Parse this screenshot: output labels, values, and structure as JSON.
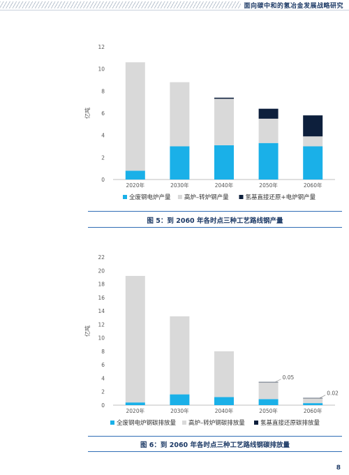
{
  "header": {
    "title": "面向碳中和的氢冶金发展战略研究"
  },
  "page_number": "8",
  "colors": {
    "series1": "#1ab0e8",
    "series2": "#d9d9d9",
    "series3": "#0d1f3c",
    "caption": "#1d3a66"
  },
  "chart_data": [
    {
      "type": "bar",
      "stacked": true,
      "categories": [
        "2020年",
        "2030年",
        "2040年",
        "2050年",
        "2060年"
      ],
      "ylabel": "亿吨",
      "ylim": [
        0,
        12
      ],
      "yticks": [
        0,
        2,
        4,
        6,
        8,
        10,
        12
      ],
      "legend_position": "bottom",
      "series": [
        {
          "name": "全废钢电炉产量",
          "values": [
            0.8,
            3.0,
            3.1,
            3.3,
            3.0
          ]
        },
        {
          "name": "高炉–转炉钢产量",
          "values": [
            9.8,
            5.8,
            4.2,
            2.2,
            0.9
          ]
        },
        {
          "name": "氢基直接还原+电炉钢产量",
          "values": [
            0,
            0,
            0.1,
            0.9,
            1.9
          ]
        }
      ],
      "caption": "图 5：到 2060 年各时点三种工艺路线钢产量"
    },
    {
      "type": "bar",
      "stacked": true,
      "categories": [
        "2020年",
        "2030年",
        "2040年",
        "2050年",
        "2060年"
      ],
      "ylabel": "亿吨",
      "ylim": [
        0,
        22
      ],
      "yticks": [
        0,
        2,
        4,
        6,
        8,
        10,
        12,
        14,
        16,
        18,
        20,
        22
      ],
      "legend_position": "bottom",
      "series": [
        {
          "name": "全废钢电炉钢碳排放量",
          "values": [
            0.4,
            1.6,
            1.2,
            0.9,
            0.3
          ]
        },
        {
          "name": "高炉–转炉钢碳排放量",
          "values": [
            18.8,
            11.6,
            6.8,
            2.5,
            0.75
          ]
        },
        {
          "name": "氢基直接还原碳排放量",
          "values": [
            0,
            0,
            0,
            0.05,
            0.02
          ]
        }
      ],
      "annotations": [
        "0.05",
        "0.02"
      ],
      "caption": "图 6：到 2060 年各时点三种工艺路线钢碳排放量"
    }
  ]
}
